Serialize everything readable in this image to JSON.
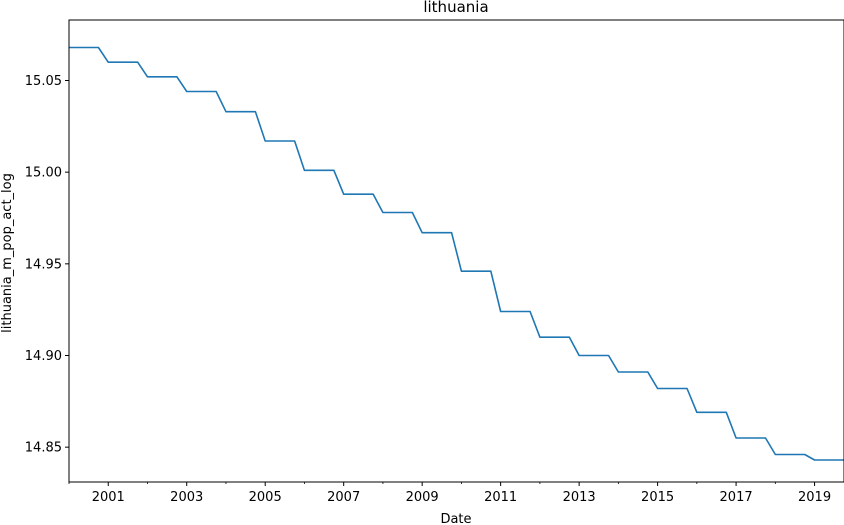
{
  "chart_data": {
    "type": "line",
    "title": "lithuania",
    "xlabel": "Date",
    "ylabel": "lithuania_m_pop_act_log",
    "grid": false,
    "legend": "none",
    "xlim": [
      2000.0,
      2019.75
    ],
    "ylim": [
      14.831,
      15.083
    ],
    "x_ticks": [
      2001,
      2003,
      2005,
      2007,
      2009,
      2011,
      2013,
      2015,
      2017,
      2019
    ],
    "x_tick_labels": [
      "2001",
      "2003",
      "2005",
      "2007",
      "2009",
      "2011",
      "2013",
      "2015",
      "2017",
      "2019"
    ],
    "y_ticks": [
      14.85,
      14.9,
      14.95,
      15.0,
      15.05
    ],
    "y_tick_labels": [
      "14.85",
      "14.90",
      "14.95",
      "15.00",
      "15.05"
    ],
    "series": [
      {
        "color": "#1f77b4",
        "annual_values": [
          {
            "year": 2000,
            "value": 15.068
          },
          {
            "year": 2001,
            "value": 15.06
          },
          {
            "year": 2002,
            "value": 15.052
          },
          {
            "year": 2003,
            "value": 15.044
          },
          {
            "year": 2004,
            "value": 15.033
          },
          {
            "year": 2005,
            "value": 15.017
          },
          {
            "year": 2006,
            "value": 15.001
          },
          {
            "year": 2007,
            "value": 14.988
          },
          {
            "year": 2008,
            "value": 14.978
          },
          {
            "year": 2009,
            "value": 14.967
          },
          {
            "year": 2010,
            "value": 14.946
          },
          {
            "year": 2011,
            "value": 14.924
          },
          {
            "year": 2012,
            "value": 14.91
          },
          {
            "year": 2013,
            "value": 14.9
          },
          {
            "year": 2014,
            "value": 14.891
          },
          {
            "year": 2015,
            "value": 14.882
          },
          {
            "year": 2016,
            "value": 14.869
          },
          {
            "year": 2017,
            "value": 14.855
          },
          {
            "year": 2018,
            "value": 14.846
          },
          {
            "year": 2019,
            "value": 14.843
          }
        ]
      }
    ]
  }
}
